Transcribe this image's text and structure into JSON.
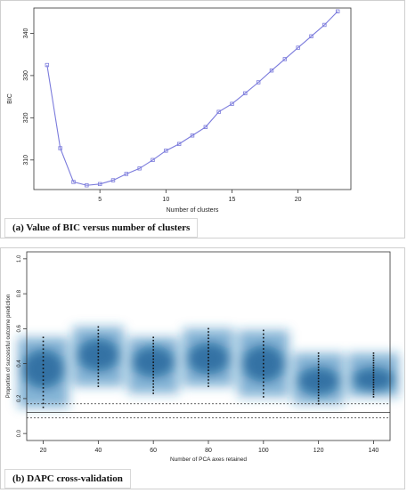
{
  "chart_data": [
    {
      "type": "line",
      "caption": "(a) Value of BIC versus number of clusters",
      "xlabel": "Number of clusters",
      "ylabel": "BIC",
      "xlim": [
        0,
        24
      ],
      "ylim": [
        303,
        346
      ],
      "x_ticks": [
        5,
        10,
        15,
        20
      ],
      "y_ticks": [
        310,
        320,
        330,
        340
      ],
      "series_color": "#7b7bdc",
      "x": [
        1,
        2,
        3,
        4,
        5,
        6,
        7,
        8,
        9,
        10,
        11,
        12,
        13,
        14,
        15,
        16,
        17,
        18,
        19,
        20,
        21,
        22,
        23
      ],
      "y": [
        332.5,
        312.8,
        304.8,
        304.0,
        304.3,
        305.2,
        306.7,
        308.0,
        310.0,
        312.2,
        313.8,
        315.8,
        317.8,
        321.4,
        323.3,
        325.8,
        328.4,
        331.2,
        333.9,
        336.6,
        339.3,
        342.0,
        345.2
      ],
      "grid": false
    },
    {
      "type": "heatmap",
      "caption": "(b) DAPC cross-validation",
      "xlabel": "Number of PCA axes retained",
      "ylabel": "Proportion of successful outcome prediction",
      "xlim": [
        14,
        146
      ],
      "ylim": [
        -0.04,
        1.04
      ],
      "x_ticks": [
        20,
        40,
        60,
        80,
        100,
        120,
        140
      ],
      "y_ticks": [
        0.0,
        0.2,
        0.4,
        0.6,
        0.8,
        1.0
      ],
      "density_color": "#1f78b4",
      "columns": [
        {
          "x": 20,
          "ymin": 0.15,
          "ymax": 0.55,
          "mean": 0.37
        },
        {
          "x": 40,
          "ymin": 0.27,
          "ymax": 0.61,
          "mean": 0.45
        },
        {
          "x": 60,
          "ymin": 0.23,
          "ymax": 0.55,
          "mean": 0.41
        },
        {
          "x": 80,
          "ymin": 0.27,
          "ymax": 0.6,
          "mean": 0.43
        },
        {
          "x": 100,
          "ymin": 0.21,
          "ymax": 0.59,
          "mean": 0.4
        },
        {
          "x": 120,
          "ymin": 0.17,
          "ymax": 0.46,
          "mean": 0.3
        },
        {
          "x": 140,
          "ymin": 0.21,
          "ymax": 0.46,
          "mean": 0.31
        }
      ],
      "reference_lines": [
        {
          "y": 0.12,
          "style": "solid"
        },
        {
          "y": 0.17,
          "style": "dotted"
        },
        {
          "y": 0.09,
          "style": "dotted"
        }
      ],
      "grid": false
    }
  ]
}
